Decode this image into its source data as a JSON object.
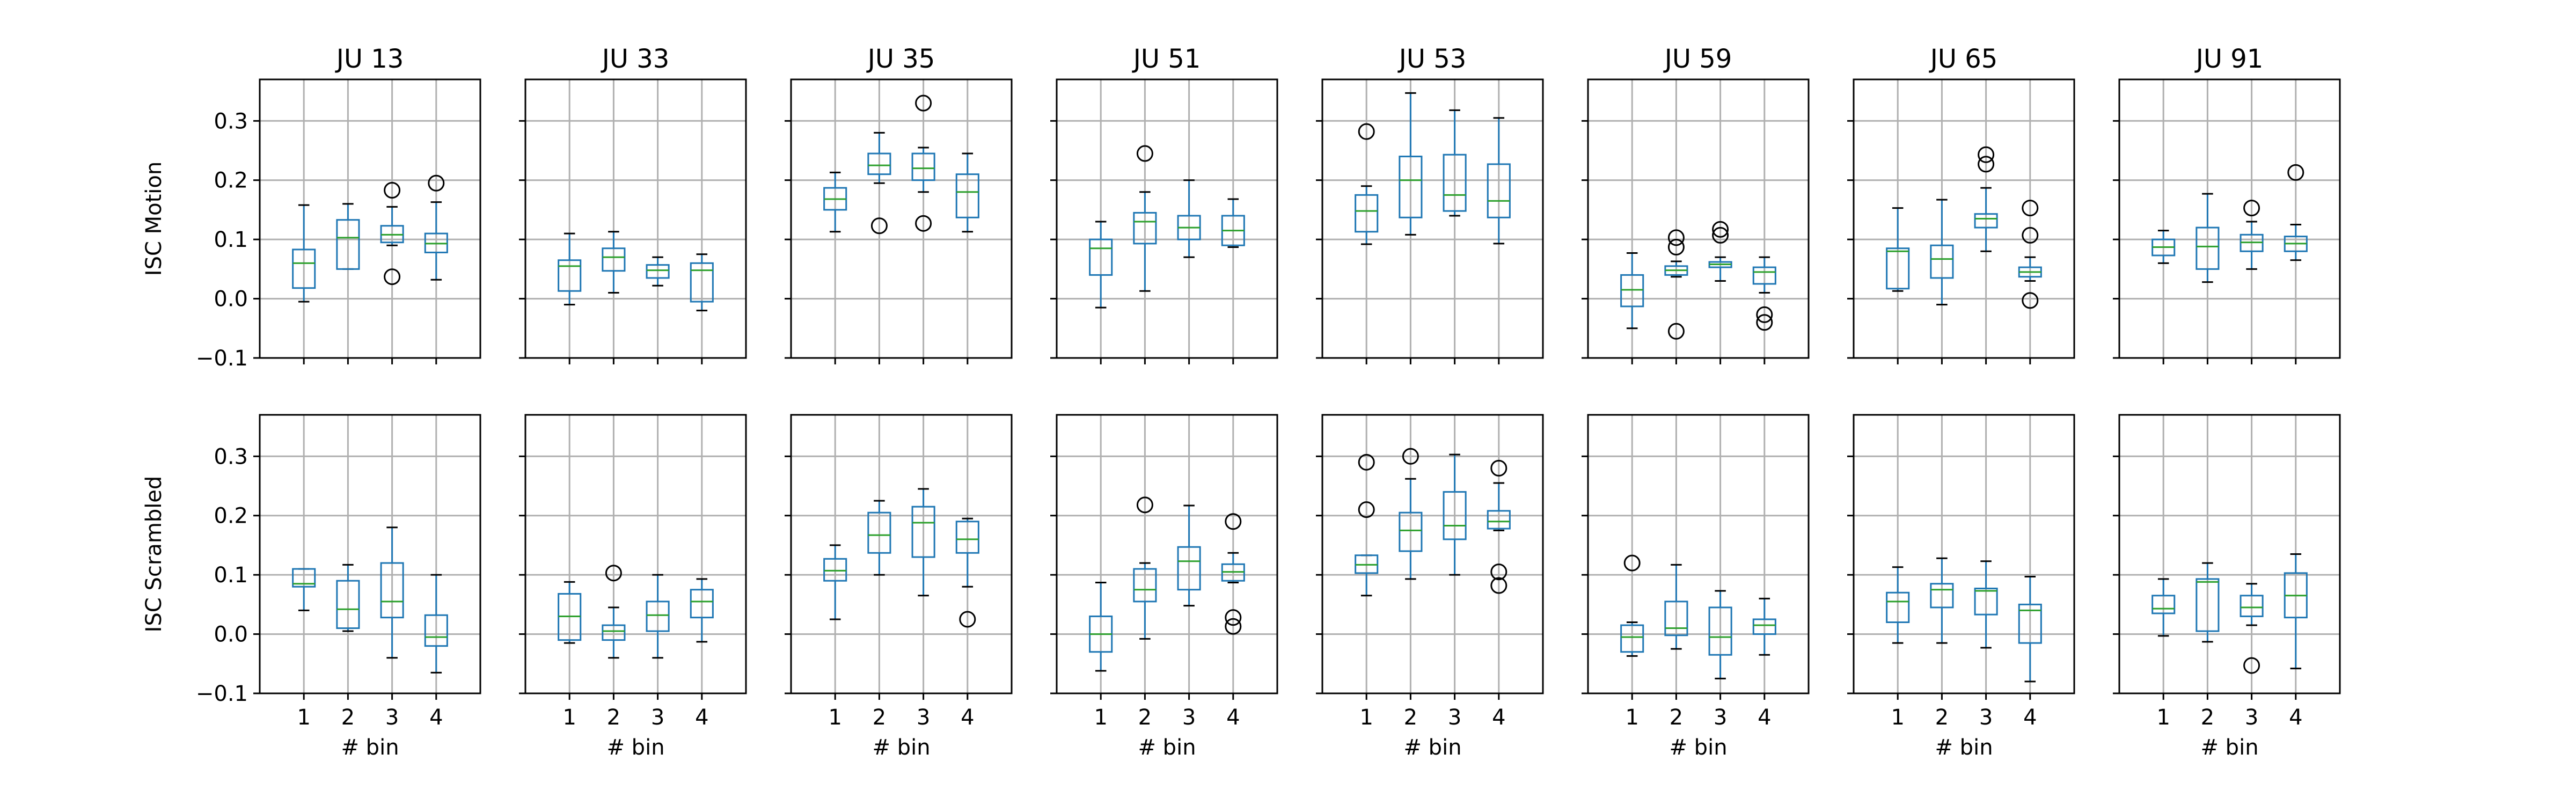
{
  "chart_data": {
    "type": "box",
    "grid": true,
    "xlabel": "# bin",
    "categories": [
      "1",
      "2",
      "3",
      "4"
    ],
    "ylim": [
      -0.1,
      0.37
    ],
    "yticks": [
      "−0.1",
      "0.0",
      "0.1",
      "0.2",
      "0.3"
    ],
    "yticks_values": [
      -0.1,
      0.0,
      0.1,
      0.2,
      0.3
    ],
    "colors": {
      "box": "#1f77b4",
      "median": "#2ca02c",
      "grid": "#b0b0b0",
      "outlier": "#000000"
    },
    "rows": [
      {
        "ylabel": "ISC Motion",
        "panels": [
          {
            "title": "JU 13",
            "boxes": [
              {
                "whislo": -0.005,
                "q1": 0.018,
                "med": 0.06,
                "q3": 0.083,
                "whishi": 0.158,
                "fliers": []
              },
              {
                "whislo": 0.05,
                "q1": 0.05,
                "med": 0.103,
                "q3": 0.133,
                "whishi": 0.16,
                "fliers": []
              },
              {
                "whislo": 0.09,
                "q1": 0.095,
                "med": 0.108,
                "q3": 0.123,
                "whishi": 0.155,
                "fliers": [
                  0.037,
                  0.183
                ]
              },
              {
                "whislo": 0.032,
                "q1": 0.078,
                "med": 0.093,
                "q3": 0.11,
                "whishi": 0.163,
                "fliers": [
                  0.195
                ]
              }
            ]
          },
          {
            "title": "JU 33",
            "boxes": [
              {
                "whislo": -0.01,
                "q1": 0.013,
                "med": 0.055,
                "q3": 0.065,
                "whishi": 0.11,
                "fliers": []
              },
              {
                "whislo": 0.01,
                "q1": 0.047,
                "med": 0.07,
                "q3": 0.085,
                "whishi": 0.113,
                "fliers": []
              },
              {
                "whislo": 0.022,
                "q1": 0.035,
                "med": 0.048,
                "q3": 0.057,
                "whishi": 0.07,
                "fliers": []
              },
              {
                "whislo": -0.02,
                "q1": -0.005,
                "med": 0.048,
                "q3": 0.06,
                "whishi": 0.075,
                "fliers": []
              }
            ]
          },
          {
            "title": "JU 35",
            "boxes": [
              {
                "whislo": 0.113,
                "q1": 0.15,
                "med": 0.168,
                "q3": 0.187,
                "whishi": 0.213,
                "fliers": []
              },
              {
                "whislo": 0.195,
                "q1": 0.21,
                "med": 0.225,
                "q3": 0.245,
                "whishi": 0.28,
                "fliers": [
                  0.123
                ]
              },
              {
                "whislo": 0.18,
                "q1": 0.2,
                "med": 0.22,
                "q3": 0.245,
                "whishi": 0.255,
                "fliers": [
                  0.33,
                  0.127
                ]
              },
              {
                "whislo": 0.113,
                "q1": 0.137,
                "med": 0.18,
                "q3": 0.21,
                "whishi": 0.245,
                "fliers": []
              }
            ]
          },
          {
            "title": "JU 51",
            "boxes": [
              {
                "whislo": -0.015,
                "q1": 0.04,
                "med": 0.085,
                "q3": 0.1,
                "whishi": 0.13,
                "fliers": []
              },
              {
                "whislo": 0.013,
                "q1": 0.093,
                "med": 0.13,
                "q3": 0.145,
                "whishi": 0.18,
                "fliers": [
                  0.245
                ]
              },
              {
                "whislo": 0.07,
                "q1": 0.1,
                "med": 0.12,
                "q3": 0.14,
                "whishi": 0.2,
                "fliers": []
              },
              {
                "whislo": 0.087,
                "q1": 0.09,
                "med": 0.115,
                "q3": 0.14,
                "whishi": 0.168,
                "fliers": []
              }
            ]
          },
          {
            "title": "JU 53",
            "boxes": [
              {
                "whislo": 0.092,
                "q1": 0.113,
                "med": 0.148,
                "q3": 0.175,
                "whishi": 0.19,
                "fliers": [
                  0.282
                ]
              },
              {
                "whislo": 0.108,
                "q1": 0.137,
                "med": 0.2,
                "q3": 0.24,
                "whishi": 0.347,
                "fliers": []
              },
              {
                "whislo": 0.14,
                "q1": 0.148,
                "med": 0.175,
                "q3": 0.243,
                "whishi": 0.318,
                "fliers": []
              },
              {
                "whislo": 0.093,
                "q1": 0.137,
                "med": 0.165,
                "q3": 0.227,
                "whishi": 0.305,
                "fliers": []
              }
            ]
          },
          {
            "title": "JU 59",
            "boxes": [
              {
                "whislo": -0.05,
                "q1": -0.013,
                "med": 0.015,
                "q3": 0.04,
                "whishi": 0.077,
                "fliers": []
              },
              {
                "whislo": 0.037,
                "q1": 0.04,
                "med": 0.048,
                "q3": 0.055,
                "whishi": 0.063,
                "fliers": [
                  0.103,
                  0.087,
                  -0.055
                ]
              },
              {
                "whislo": 0.03,
                "q1": 0.053,
                "med": 0.058,
                "q3": 0.062,
                "whishi": 0.07,
                "fliers": [
                  0.117,
                  0.107
                ]
              },
              {
                "whislo": 0.01,
                "q1": 0.025,
                "med": 0.045,
                "q3": 0.053,
                "whishi": 0.07,
                "fliers": [
                  -0.027,
                  -0.04
                ]
              }
            ]
          },
          {
            "title": "JU 65",
            "boxes": [
              {
                "whislo": 0.013,
                "q1": 0.017,
                "med": 0.08,
                "q3": 0.085,
                "whishi": 0.153,
                "fliers": []
              },
              {
                "whislo": -0.01,
                "q1": 0.035,
                "med": 0.067,
                "q3": 0.09,
                "whishi": 0.167,
                "fliers": []
              },
              {
                "whislo": 0.08,
                "q1": 0.12,
                "med": 0.135,
                "q3": 0.143,
                "whishi": 0.187,
                "fliers": [
                  0.243,
                  0.227
                ]
              },
              {
                "whislo": 0.03,
                "q1": 0.037,
                "med": 0.045,
                "q3": 0.053,
                "whishi": 0.07,
                "fliers": [
                  0.153,
                  0.107,
                  -0.003
                ]
              }
            ]
          },
          {
            "title": "JU 91",
            "boxes": [
              {
                "whislo": 0.06,
                "q1": 0.073,
                "med": 0.087,
                "q3": 0.1,
                "whishi": 0.115,
                "fliers": []
              },
              {
                "whislo": 0.028,
                "q1": 0.05,
                "med": 0.088,
                "q3": 0.12,
                "whishi": 0.177,
                "fliers": []
              },
              {
                "whislo": 0.05,
                "q1": 0.08,
                "med": 0.095,
                "q3": 0.108,
                "whishi": 0.13,
                "fliers": [
                  0.153
                ]
              },
              {
                "whislo": 0.065,
                "q1": 0.08,
                "med": 0.093,
                "q3": 0.105,
                "whishi": 0.125,
                "fliers": [
                  0.213
                ]
              }
            ]
          }
        ]
      },
      {
        "ylabel": "ISC Scrambled",
        "panels": [
          {
            "title": "JU 13",
            "boxes": [
              {
                "whislo": 0.04,
                "q1": 0.08,
                "med": 0.085,
                "q3": 0.11,
                "whishi": 0.11,
                "fliers": []
              },
              {
                "whislo": 0.005,
                "q1": 0.01,
                "med": 0.042,
                "q3": 0.09,
                "whishi": 0.117,
                "fliers": []
              },
              {
                "whislo": -0.04,
                "q1": 0.028,
                "med": 0.055,
                "q3": 0.12,
                "whishi": 0.18,
                "fliers": []
              },
              {
                "whislo": -0.065,
                "q1": -0.02,
                "med": -0.005,
                "q3": 0.032,
                "whishi": 0.1,
                "fliers": []
              }
            ]
          },
          {
            "title": "JU 33",
            "boxes": [
              {
                "whislo": -0.015,
                "q1": -0.01,
                "med": 0.03,
                "q3": 0.068,
                "whishi": 0.088,
                "fliers": []
              },
              {
                "whislo": -0.04,
                "q1": -0.01,
                "med": 0.005,
                "q3": 0.015,
                "whishi": 0.045,
                "fliers": [
                  0.103
                ]
              },
              {
                "whislo": -0.04,
                "q1": 0.005,
                "med": 0.032,
                "q3": 0.055,
                "whishi": 0.1,
                "fliers": []
              },
              {
                "whislo": -0.013,
                "q1": 0.028,
                "med": 0.055,
                "q3": 0.075,
                "whishi": 0.093,
                "fliers": []
              }
            ]
          },
          {
            "title": "JU 35",
            "boxes": [
              {
                "whislo": 0.025,
                "q1": 0.09,
                "med": 0.107,
                "q3": 0.127,
                "whishi": 0.15,
                "fliers": []
              },
              {
                "whislo": 0.1,
                "q1": 0.137,
                "med": 0.167,
                "q3": 0.205,
                "whishi": 0.225,
                "fliers": []
              },
              {
                "whislo": 0.065,
                "q1": 0.13,
                "med": 0.188,
                "q3": 0.215,
                "whishi": 0.245,
                "fliers": []
              },
              {
                "whislo": 0.08,
                "q1": 0.137,
                "med": 0.16,
                "q3": 0.19,
                "whishi": 0.195,
                "fliers": [
                  0.025
                ]
              }
            ]
          },
          {
            "title": "JU 51",
            "boxes": [
              {
                "whislo": -0.062,
                "q1": -0.03,
                "med": 0.0,
                "q3": 0.03,
                "whishi": 0.087,
                "fliers": []
              },
              {
                "whislo": -0.008,
                "q1": 0.055,
                "med": 0.075,
                "q3": 0.11,
                "whishi": 0.12,
                "fliers": [
                  0.218
                ]
              },
              {
                "whislo": 0.048,
                "q1": 0.075,
                "med": 0.123,
                "q3": 0.147,
                "whishi": 0.217,
                "fliers": []
              },
              {
                "whislo": 0.087,
                "q1": 0.09,
                "med": 0.105,
                "q3": 0.118,
                "whishi": 0.137,
                "fliers": [
                  0.19,
                  0.028,
                  0.013
                ]
              }
            ]
          },
          {
            "title": "JU 53",
            "boxes": [
              {
                "whislo": 0.065,
                "q1": 0.103,
                "med": 0.117,
                "q3": 0.133,
                "whishi": 0.133,
                "fliers": [
                  0.29,
                  0.21
                ]
              },
              {
                "whislo": 0.093,
                "q1": 0.14,
                "med": 0.175,
                "q3": 0.205,
                "whishi": 0.262,
                "fliers": [
                  0.3
                ]
              },
              {
                "whislo": 0.1,
                "q1": 0.16,
                "med": 0.183,
                "q3": 0.24,
                "whishi": 0.303,
                "fliers": []
              },
              {
                "whislo": 0.175,
                "q1": 0.178,
                "med": 0.19,
                "q3": 0.208,
                "whishi": 0.255,
                "fliers": [
                  0.28,
                  0.105,
                  0.082
                ]
              }
            ]
          },
          {
            "title": "JU 59",
            "boxes": [
              {
                "whislo": -0.037,
                "q1": -0.03,
                "med": -0.005,
                "q3": 0.015,
                "whishi": 0.02,
                "fliers": [
                  0.12
                ]
              },
              {
                "whislo": -0.025,
                "q1": -0.002,
                "med": 0.01,
                "q3": 0.055,
                "whishi": 0.117,
                "fliers": []
              },
              {
                "whislo": -0.075,
                "q1": -0.035,
                "med": -0.005,
                "q3": 0.045,
                "whishi": 0.073,
                "fliers": []
              },
              {
                "whislo": -0.035,
                "q1": 0.0,
                "med": 0.015,
                "q3": 0.025,
                "whishi": 0.06,
                "fliers": []
              }
            ]
          },
          {
            "title": "JU 65",
            "boxes": [
              {
                "whislo": -0.015,
                "q1": 0.02,
                "med": 0.055,
                "q3": 0.07,
                "whishi": 0.113,
                "fliers": []
              },
              {
                "whislo": -0.015,
                "q1": 0.045,
                "med": 0.075,
                "q3": 0.085,
                "whishi": 0.128,
                "fliers": []
              },
              {
                "whislo": -0.023,
                "q1": 0.033,
                "med": 0.073,
                "q3": 0.077,
                "whishi": 0.123,
                "fliers": []
              },
              {
                "whislo": -0.08,
                "q1": -0.015,
                "med": 0.04,
                "q3": 0.05,
                "whishi": 0.097,
                "fliers": []
              }
            ]
          },
          {
            "title": "JU 91",
            "boxes": [
              {
                "whislo": -0.003,
                "q1": 0.035,
                "med": 0.043,
                "q3": 0.065,
                "whishi": 0.093,
                "fliers": []
              },
              {
                "whislo": -0.013,
                "q1": 0.005,
                "med": 0.088,
                "q3": 0.093,
                "whishi": 0.12,
                "fliers": []
              },
              {
                "whislo": 0.015,
                "q1": 0.03,
                "med": 0.045,
                "q3": 0.065,
                "whishi": 0.085,
                "fliers": [
                  -0.053
                ]
              },
              {
                "whislo": -0.058,
                "q1": 0.028,
                "med": 0.065,
                "q3": 0.103,
                "whishi": 0.135,
                "fliers": []
              }
            ]
          }
        ]
      }
    ]
  }
}
